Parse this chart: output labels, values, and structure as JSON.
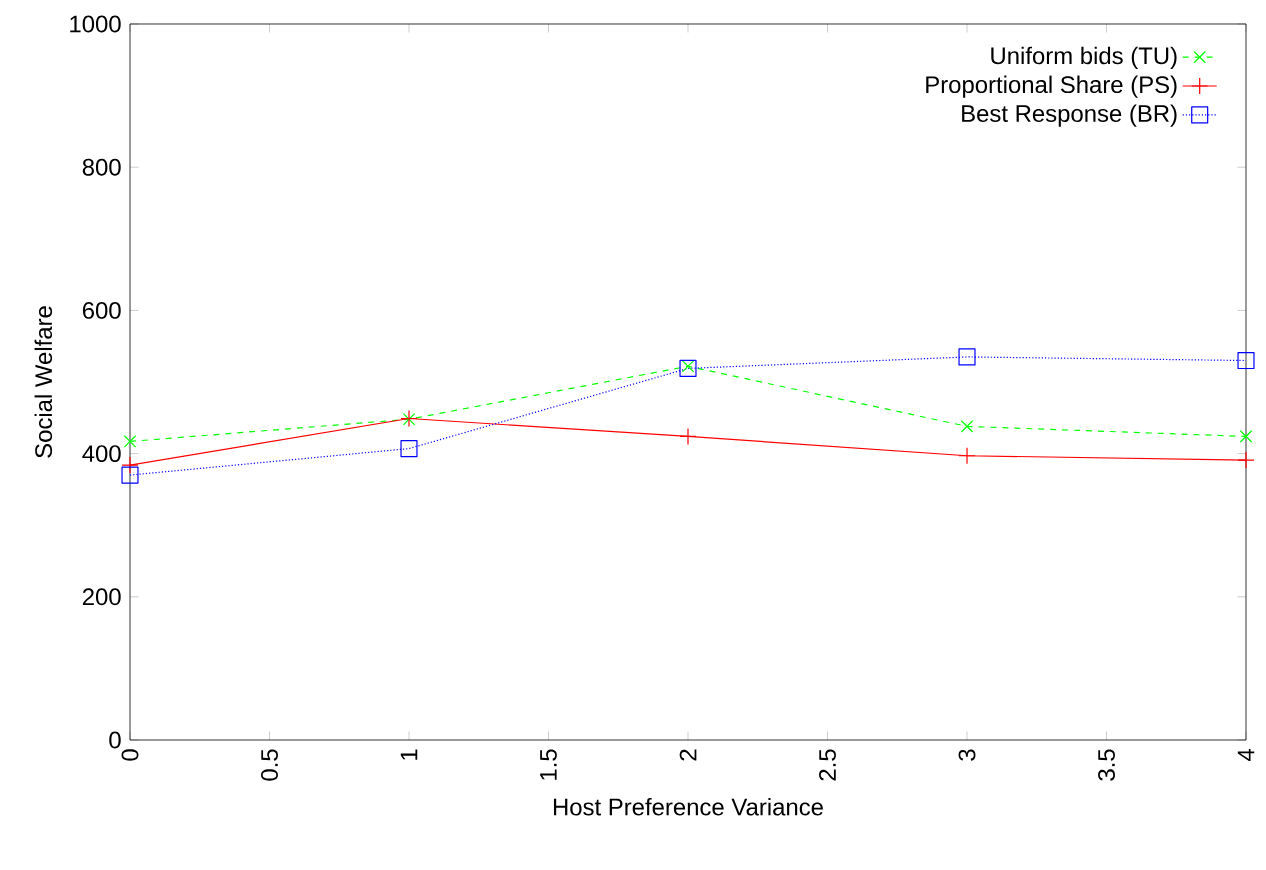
{
  "chart_data": {
    "type": "line",
    "xlabel": "Host Preference Variance",
    "ylabel": "Social Welfare",
    "x": [
      0,
      1,
      2,
      3,
      4
    ],
    "series": [
      {
        "name": "Uniform bids (TU)",
        "color": "#00ff00",
        "values": [
          417,
          448,
          522,
          438,
          424
        ],
        "marker": "cross",
        "line_style": "dashed"
      },
      {
        "name": "Proportional Share (PS)",
        "color": "#ff0000",
        "values": [
          384,
          449,
          424,
          397,
          391
        ],
        "marker": "plus",
        "line_style": "solid"
      },
      {
        "name": "Best Response (BR)",
        "color": "#0000ff",
        "values": [
          370,
          407,
          519,
          535,
          530
        ],
        "marker": "square",
        "line_style": "dotted"
      }
    ],
    "xlim": [
      0,
      4
    ],
    "ylim": [
      0,
      1000
    ],
    "xticks": [
      0,
      0.5,
      1,
      1.5,
      2,
      2.5,
      3,
      3.5,
      4
    ],
    "yticks": [
      0,
      200,
      400,
      600,
      800,
      1000
    ],
    "grid": false,
    "legend": "top right"
  }
}
